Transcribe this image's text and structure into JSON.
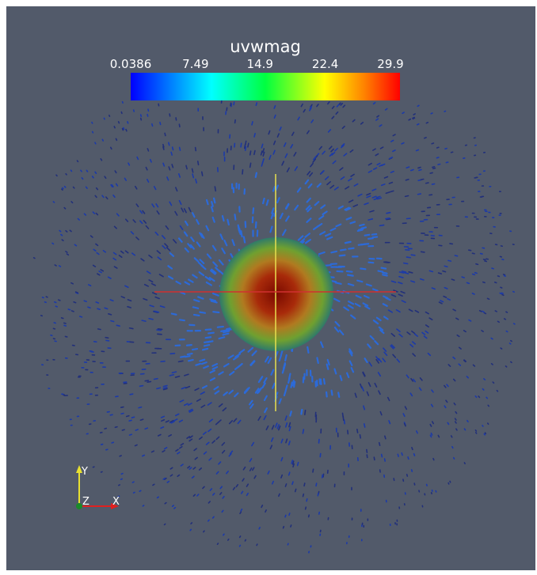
{
  "color_legend": {
    "title": "uvwmag",
    "range": [
      0.0386,
      29.9
    ],
    "ticks": [
      0.0386,
      7.49,
      14.9,
      22.4,
      29.9
    ]
  },
  "orientation_axes": {
    "y": "Y",
    "z": "Z",
    "x": "X"
  }
}
